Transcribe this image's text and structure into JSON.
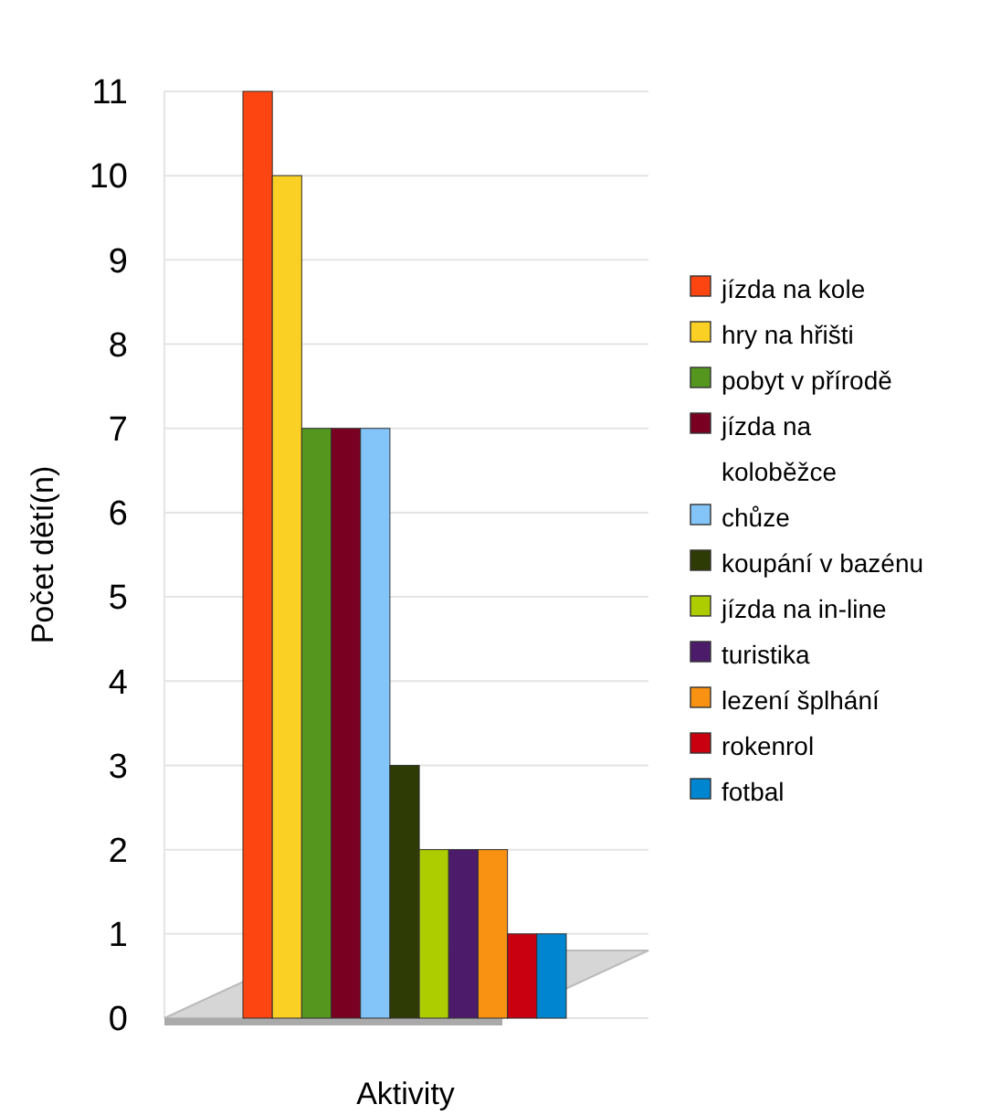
{
  "chart_data": {
    "type": "bar",
    "xlabel": "Aktivity",
    "ylabel": "Počet dětí(n)",
    "categories": [
      null
    ],
    "ylim": [
      0,
      11
    ],
    "yticks": [
      0,
      1,
      2,
      3,
      4,
      5,
      6,
      7,
      8,
      9,
      10,
      11
    ],
    "grid": "y",
    "legend": "right",
    "series": [
      {
        "name": "jízda na kole",
        "color": "#fc4511",
        "values": [
          11
        ]
      },
      {
        "name": "hry na hřišti",
        "color": "#f9d023",
        "values": [
          10
        ]
      },
      {
        "name": "pobyt v přírodě",
        "color": "#55961f",
        "values": [
          7
        ]
      },
      {
        "name": "jízda na koloběžce",
        "color": "#7a0021",
        "values": [
          7
        ]
      },
      {
        "name": "chůze",
        "color": "#83c5f9",
        "values": [
          7
        ]
      },
      {
        "name": "koupání v bazénu",
        "color": "#2f3b05",
        "values": [
          3
        ]
      },
      {
        "name": "jízda na in-line",
        "color": "#aecd00",
        "values": [
          2
        ]
      },
      {
        "name": "turistika",
        "color": "#4c1c6b",
        "values": [
          2
        ]
      },
      {
        "name": "lezení šplhání",
        "color": "#f99112",
        "values": [
          2
        ]
      },
      {
        "name": "rokenrol",
        "color": "#c8000f",
        "values": [
          1
        ]
      },
      {
        "name": "fotbal",
        "color": "#0085d0",
        "values": [
          1
        ]
      }
    ]
  }
}
